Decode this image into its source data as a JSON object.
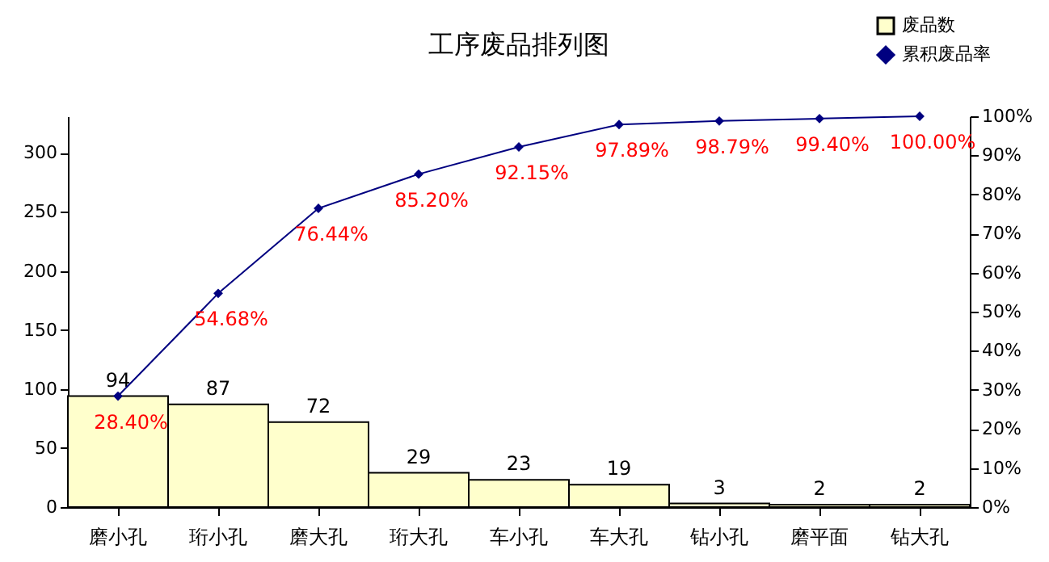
{
  "chart_data": {
    "type": "bar",
    "title": "工序废品排列图",
    "categories": [
      "磨小孔",
      "珩小孔",
      "磨大孔",
      "珩大孔",
      "车小孔",
      "车大孔",
      "钻小孔",
      "磨平面",
      "钻大孔"
    ],
    "series": [
      {
        "name": "废品数",
        "color": "#ffffcc",
        "values": [
          94,
          87,
          72,
          29,
          23,
          19,
          3,
          2,
          2
        ]
      },
      {
        "name": "累积废品率",
        "color": "#000080",
        "type": "line",
        "axis": "y2",
        "values": [
          28.4,
          54.68,
          76.44,
          85.2,
          92.15,
          97.89,
          98.79,
          99.4,
          100.0
        ],
        "value_labels": [
          "28.40%",
          "54.68%",
          "76.44%",
          "85.20%",
          "92.15%",
          "97.89%",
          "98.79%",
          "99.40%",
          "100.00%"
        ]
      }
    ],
    "ylim": [
      0,
      331
    ],
    "yticks": [
      0,
      50,
      100,
      150,
      200,
      250,
      300
    ],
    "y2lim": [
      0,
      100
    ],
    "y2ticks": [
      {
        "value": 0,
        "label": "0%"
      },
      {
        "value": 10,
        "label": "10%"
      },
      {
        "value": 20,
        "label": "20%"
      },
      {
        "value": 30,
        "label": "30%"
      },
      {
        "value": 40,
        "label": "40%"
      },
      {
        "value": 50,
        "label": "50%"
      },
      {
        "value": 60,
        "label": "60%"
      },
      {
        "value": 70,
        "label": "70%"
      },
      {
        "value": 80,
        "label": "80%"
      },
      {
        "value": 90,
        "label": "90%"
      },
      {
        "value": 100,
        "label": "100%"
      }
    ],
    "data_labels": true,
    "grid": false,
    "legend": "top right",
    "marker": "diamond"
  }
}
